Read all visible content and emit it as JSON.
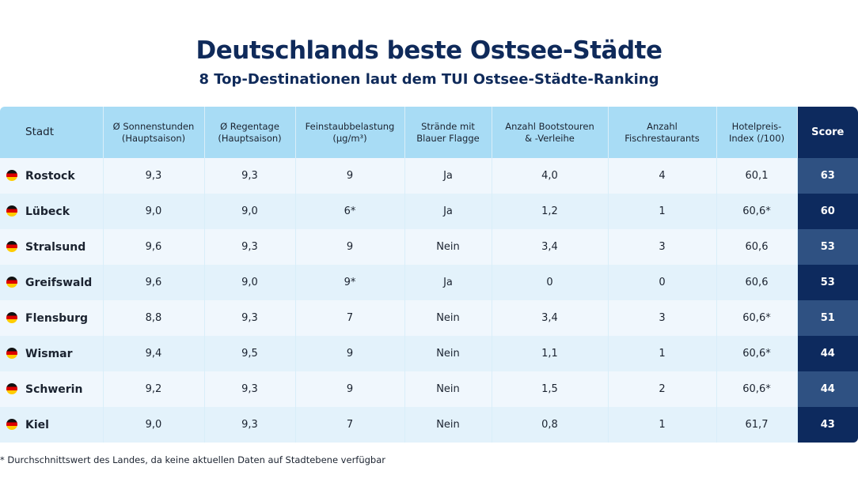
{
  "title": "Deutschlands beste Ostsee-Städte",
  "subtitle": "8 Top-Destinationen laut dem TUI Ostsee-Städte-Ranking",
  "colors": {
    "header": "#a8dcf5",
    "score_header": "#0d2a5e",
    "score_light": "#2f5182",
    "score_dark": "#0d2a5e",
    "title": "#0f2a5a"
  },
  "table": {
    "headers": [
      [
        "Stadt"
      ],
      [
        "Ø Sonnenstunden",
        "(Hauptsaison)"
      ],
      [
        "Ø Regentage",
        "(Hauptsaison)"
      ],
      [
        "Feinstaubbelastung",
        "(µg/m³)"
      ],
      [
        "Strände mit",
        "Blauer Flagge"
      ],
      [
        "Anzahl Bootstouren",
        "&  -Verleihe"
      ],
      [
        "Anzahl",
        "Fischrestaurants"
      ],
      [
        "Hotelpreis-",
        "Index (/100)"
      ],
      [
        "Score"
      ]
    ],
    "rows": [
      [
        "Rostock",
        "9,3",
        "9,3",
        "9",
        "Ja",
        "4,0",
        "4",
        "60,1",
        "63"
      ],
      [
        "Lübeck",
        "9,0",
        "9,0",
        "6*",
        "Ja",
        "1,2",
        "1",
        "60,6*",
        "60"
      ],
      [
        "Stralsund",
        "9,6",
        "9,3",
        "9",
        "Nein",
        "3,4",
        "3",
        "60,6",
        "53"
      ],
      [
        "Greifswald",
        "9,6",
        "9,0",
        "9*",
        "Ja",
        "0",
        "0",
        "60,6",
        "53"
      ],
      [
        "Flensburg",
        "8,8",
        "9,3",
        "7",
        "Nein",
        "3,4",
        "3",
        "60,6*",
        "51"
      ],
      [
        "Wismar",
        "9,4",
        "9,5",
        "9",
        "Nein",
        "1,1",
        "1",
        "60,6*",
        "44"
      ],
      [
        "Schwerin",
        "9,2",
        "9,3",
        "9",
        "Nein",
        "1,5",
        "2",
        "60,6*",
        "44"
      ],
      [
        "Kiel",
        "9,0",
        "9,3",
        "7",
        "Nein",
        "0,8",
        "1",
        "61,7",
        "43"
      ]
    ],
    "row_icon": "germany-flag-icon"
  },
  "footnote": "* Durchschnittswert des Landes, da keine aktuellen Daten auf Stadtebene verfügbar"
}
